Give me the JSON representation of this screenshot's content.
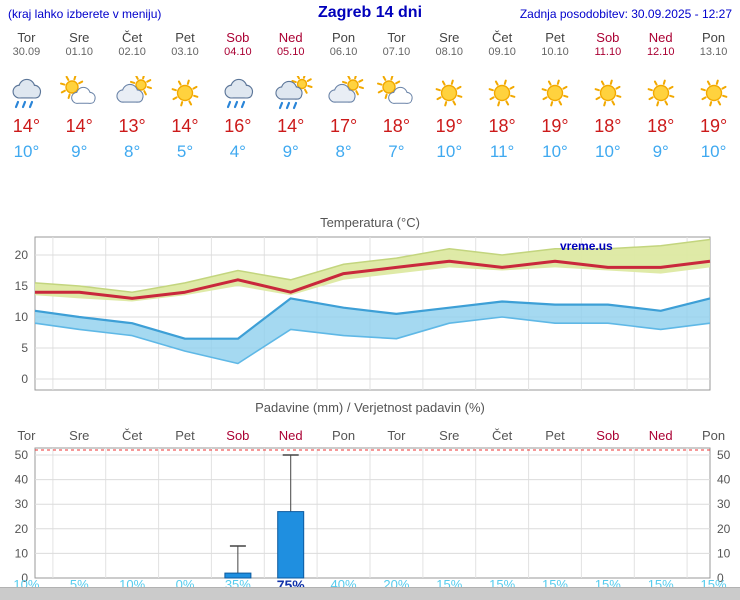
{
  "header": {
    "left_note": "(kraj lahko izberete v meniju)",
    "title": "Zagreb 14 dni",
    "updated": "Zadnja posodobitev: 30.09.2025 - 12:27"
  },
  "watermark": "vreme.us",
  "colors": {
    "header_blue": "#0000cc",
    "title_blue": "#0000bb",
    "day_gray": "#444444",
    "weekend_red": "#aa0033",
    "tmax_red": "#cc1a1a",
    "tmin_blue": "#3fa9f0",
    "band_green": "#dde9a2",
    "line_red": "#c9283c",
    "band_blue": "#8fd0ee",
    "line_blue": "#3d9fd6",
    "bar_blue": "#1f8fe0",
    "bar_border": "#0c5a9e",
    "prob_cyan": "#55ccee",
    "prob_strong_blue": "#1133aa",
    "footer_gray": "#cbcbcb"
  },
  "forecast": {
    "days": [
      {
        "day": "Tor",
        "date": "30.09",
        "weekend": false,
        "icon": "rain",
        "tmax": "14°",
        "tmin": "10°",
        "prob": "10%",
        "prob_strong": false
      },
      {
        "day": "Sre",
        "date": "01.10",
        "weekend": false,
        "icon": "partly-cloudy",
        "tmax": "14°",
        "tmin": "9°",
        "prob": "5%",
        "prob_strong": false
      },
      {
        "day": "Čet",
        "date": "02.10",
        "weekend": false,
        "icon": "cloudy-sun",
        "tmax": "13°",
        "tmin": "8°",
        "prob": "10%",
        "prob_strong": false
      },
      {
        "day": "Pet",
        "date": "03.10",
        "weekend": false,
        "icon": "sunny",
        "tmax": "14°",
        "tmin": "5°",
        "prob": "0%",
        "prob_strong": false
      },
      {
        "day": "Sob",
        "date": "04.10",
        "weekend": true,
        "icon": "rain",
        "tmax": "16°",
        "tmin": "4°",
        "prob": "35%",
        "prob_strong": false
      },
      {
        "day": "Ned",
        "date": "05.10",
        "weekend": true,
        "icon": "rain-sun",
        "tmax": "14°",
        "tmin": "9°",
        "prob": "75%",
        "prob_strong": true
      },
      {
        "day": "Pon",
        "date": "06.10",
        "weekend": false,
        "icon": "cloudy-sun",
        "tmax": "17°",
        "tmin": "8°",
        "prob": "40%",
        "prob_strong": false
      },
      {
        "day": "Tor",
        "date": "07.10",
        "weekend": false,
        "icon": "partly-cloudy",
        "tmax": "18°",
        "tmin": "7°",
        "prob": "20%",
        "prob_strong": false
      },
      {
        "day": "Sre",
        "date": "08.10",
        "weekend": false,
        "icon": "sunny",
        "tmax": "19°",
        "tmin": "10°",
        "prob": "15%",
        "prob_strong": false
      },
      {
        "day": "Čet",
        "date": "09.10",
        "weekend": false,
        "icon": "sunny",
        "tmax": "18°",
        "tmin": "11°",
        "prob": "15%",
        "prob_strong": false
      },
      {
        "day": "Pet",
        "date": "10.10",
        "weekend": false,
        "icon": "sunny",
        "tmax": "19°",
        "tmin": "10°",
        "prob": "15%",
        "prob_strong": false
      },
      {
        "day": "Sob",
        "date": "11.10",
        "weekend": true,
        "icon": "sunny",
        "tmax": "18°",
        "tmin": "10°",
        "prob": "15%",
        "prob_strong": false
      },
      {
        "day": "Ned",
        "date": "12.10",
        "weekend": true,
        "icon": "sunny",
        "tmax": "18°",
        "tmin": "9°",
        "prob": "15%",
        "prob_strong": false
      },
      {
        "day": "Pon",
        "date": "13.10",
        "weekend": false,
        "icon": "sunny",
        "tmax": "19°",
        "tmin": "10°",
        "prob": "15%",
        "prob_strong": false
      }
    ]
  },
  "chart_data": [
    {
      "type": "area",
      "title": "Temperatura (°C)",
      "x": [
        "Tor 30.09",
        "Sre 01.10",
        "Čet 02.10",
        "Pet 03.10",
        "Sob 04.10",
        "Ned 05.10",
        "Pon 06.10",
        "Tor 07.10",
        "Sre 08.10",
        "Čet 09.10",
        "Pet 10.10",
        "Sob 11.10",
        "Ned 12.10",
        "Pon 13.10"
      ],
      "ylim": [
        -2,
        23
      ],
      "yticks": [
        0,
        5,
        10,
        15,
        20
      ],
      "grid": true,
      "legend": false,
      "series": [
        {
          "name": "tmax",
          "values": [
            14,
            14,
            13,
            14,
            16,
            14,
            17,
            18,
            19,
            18,
            19,
            18,
            18,
            19
          ]
        },
        {
          "name": "tmax_upper",
          "values": [
            15.5,
            15,
            14,
            15.5,
            17.5,
            16,
            18.5,
            19.5,
            21,
            20,
            21,
            21,
            21.5,
            22.5
          ]
        },
        {
          "name": "tmax_lower",
          "values": [
            13.5,
            13,
            12.5,
            13.5,
            15,
            13.5,
            16,
            17,
            18,
            17.5,
            18,
            17.5,
            17,
            18
          ]
        },
        {
          "name": "tmin",
          "values": [
            10,
            9,
            8,
            5,
            4,
            9,
            8,
            7,
            10,
            11,
            10,
            10,
            9,
            10
          ]
        },
        {
          "name": "tmin_upper",
          "values": [
            11,
            10,
            9,
            6.5,
            6.5,
            13,
            11.5,
            10.5,
            11.5,
            12.5,
            12,
            12,
            11,
            13
          ]
        },
        {
          "name": "tmin_lower",
          "values": [
            9,
            8,
            7,
            4.5,
            2.5,
            8,
            7,
            6.5,
            9,
            10,
            9,
            9,
            8,
            9
          ]
        }
      ]
    },
    {
      "type": "bar",
      "title": "Padavine (mm) / Verjetnost padavin (%)",
      "categories": [
        "Tor",
        "Sre",
        "Čet",
        "Pet",
        "Sob",
        "Ned",
        "Pon",
        "Tor",
        "Sre",
        "Čet",
        "Pet",
        "Sob",
        "Ned",
        "Pon"
      ],
      "values_mm": [
        0,
        0,
        0,
        0,
        2,
        27,
        0,
        0,
        0,
        0,
        0,
        0,
        0,
        0
      ],
      "whisker_mm": [
        0,
        0,
        0,
        0,
        13,
        50,
        0,
        0,
        0,
        0,
        0,
        0,
        0,
        0
      ],
      "probability_pct": [
        10,
        5,
        10,
        0,
        35,
        75,
        40,
        20,
        15,
        15,
        15,
        15,
        15,
        15
      ],
      "ylim": [
        0,
        53
      ],
      "yticks": [
        0,
        10,
        20,
        30,
        40,
        50
      ],
      "grid": true
    }
  ]
}
